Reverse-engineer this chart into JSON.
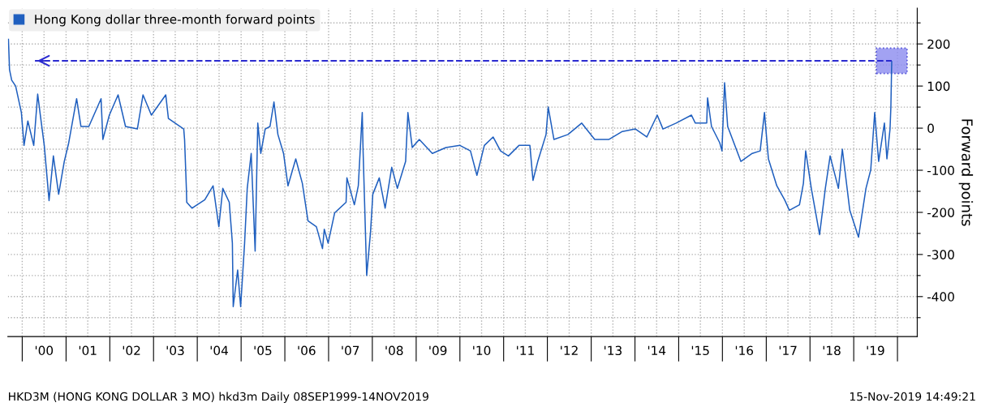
{
  "chart_data": {
    "type": "line",
    "ylabel": "Forward points",
    "x": [
      "1999-09-08",
      "1999-09-17",
      "1999-10-05",
      "1999-11-07",
      "1999-12-25",
      "2000-01-16",
      "2000-02-17",
      "2000-04-06",
      "2000-05-09",
      "2000-05-31",
      "2000-07-03",
      "2000-08-12",
      "2000-09-17",
      "2000-10-31",
      "2000-12-17",
      "2001-01-23",
      "2001-03-30",
      "2001-05-05",
      "2001-07-10",
      "2001-10-20",
      "2001-11-04",
      "2001-12-28",
      "2002-03-11",
      "2002-05-12",
      "2002-08-19",
      "2002-10-05",
      "2002-12-14",
      "2003-04-13",
      "2003-05-05",
      "2003-09-10",
      "2003-09-17",
      "2003-10-02",
      "2003-10-05",
      "2003-11-18",
      "2004-03-04",
      "2004-05-12",
      "2004-06-29",
      "2004-08-01",
      "2004-09-24",
      "2004-10-20",
      "2004-10-27",
      "2004-12-03",
      "2004-12-28",
      "2005-01-30",
      "2005-02-21",
      "2005-03-26",
      "2005-04-28",
      "2005-05-20",
      "2005-06-14",
      "2005-07-21",
      "2005-08-30",
      "2005-10-02",
      "2005-11-04",
      "2005-12-21",
      "2006-01-27",
      "2006-04-02",
      "2006-05-27",
      "2006-07-13",
      "2006-09-21",
      "2006-11-11",
      "2006-11-26",
      "2006-12-28",
      "2007-02-21",
      "2007-05-27",
      "2007-06-03",
      "2007-08-04",
      "2007-09-06",
      "2007-10-09",
      "2007-10-16",
      "2007-11-15",
      "2007-12-17",
      "2008-01-05",
      "2008-02-28",
      "2008-04-17",
      "2008-06-11",
      "2008-07-28",
      "2008-10-05",
      "2008-10-24",
      "2008-11-29",
      "2009-01-27",
      "2009-05-16",
      "2009-09-06",
      "2010-01-01",
      "2010-03-30",
      "2010-05-23",
      "2010-07-24",
      "2010-10-05",
      "2010-12-06",
      "2011-02-10",
      "2011-05-09",
      "2011-08-08",
      "2011-09-03",
      "2011-10-13",
      "2011-12-21",
      "2012-01-08",
      "2012-02-25",
      "2012-06-21",
      "2012-10-13",
      "2013-01-30",
      "2013-05-27",
      "2013-09-17",
      "2014-01-05",
      "2014-04-10",
      "2014-07-06",
      "2014-08-23",
      "2014-12-10",
      "2015-04-17",
      "2015-05-20",
      "2015-08-23",
      "2015-08-30",
      "2015-10-02",
      "2015-12-10",
      "2015-12-28",
      "2016-01-19",
      "2016-02-14",
      "2016-06-03",
      "2016-09-06",
      "2016-11-11",
      "2016-12-17",
      "2017-01-19",
      "2017-03-30",
      "2017-06-03",
      "2017-07-13",
      "2017-10-05",
      "2017-11-07",
      "2017-11-26",
      "2018-01-12",
      "2018-03-22",
      "2018-05-09",
      "2018-06-18",
      "2018-08-26",
      "2018-09-28",
      "2018-11-29",
      "2019-02-10",
      "2019-04-13",
      "2019-05-23",
      "2019-06-25",
      "2019-07-28",
      "2019-09-14",
      "2019-10-05",
      "2019-10-31",
      "2019-11-07",
      "2019-11-14"
    ],
    "series": [
      {
        "name": "Hong Kong dollar three-month forward points",
        "color": "#1f5fbf",
        "values": [
          211,
          139,
          114,
          100,
          37,
          -41,
          17,
          -41,
          81,
          31,
          -41,
          -172,
          -66,
          -157,
          -79,
          -35,
          70,
          4,
          4,
          70,
          -27,
          31,
          79,
          4,
          -2,
          79,
          31,
          79,
          23,
          -2,
          -27,
          -143,
          -176,
          -190,
          -170,
          -137,
          -234,
          -143,
          -176,
          -273,
          -424,
          -337,
          -424,
          -273,
          -143,
          -60,
          -292,
          12,
          -60,
          -2,
          4,
          62,
          -15,
          -60,
          -137,
          -73,
          -131,
          -220,
          -234,
          -286,
          -240,
          -273,
          -201,
          -176,
          -118,
          -182,
          -137,
          37,
          -54,
          -350,
          -247,
          -157,
          -118,
          -190,
          -93,
          -143,
          -79,
          37,
          -46,
          -27,
          -60,
          -46,
          -41,
          -54,
          -112,
          -41,
          -21,
          -54,
          -66,
          -41,
          -41,
          -124,
          -79,
          -15,
          50,
          -27,
          -15,
          12,
          -27,
          -27,
          -8,
          -2,
          -21,
          31,
          -2,
          12,
          31,
          12,
          12,
          72,
          4,
          -35,
          -54,
          108,
          4,
          -79,
          -60,
          -54,
          37,
          -73,
          -137,
          -170,
          -195,
          -182,
          -131,
          -54,
          -143,
          -253,
          -143,
          -66,
          -143,
          -50,
          -195,
          -259,
          -143,
          -99,
          37,
          -79,
          12,
          -73,
          -2,
          50,
          158
        ]
      }
    ],
    "xlim": [
      "1999-09-03",
      "2020-06-14"
    ],
    "xticks": [
      {
        "value": "2000-01-01",
        "label": null
      },
      {
        "value": "2000-07-01",
        "label": "'00"
      },
      {
        "value": "2001-01-01",
        "label": null
      },
      {
        "value": "2001-07-01",
        "label": "'01"
      },
      {
        "value": "2002-01-01",
        "label": null
      },
      {
        "value": "2002-07-01",
        "label": "'02"
      },
      {
        "value": "2003-01-01",
        "label": null
      },
      {
        "value": "2003-07-01",
        "label": "'03"
      },
      {
        "value": "2004-01-01",
        "label": null
      },
      {
        "value": "2004-07-01",
        "label": "'04"
      },
      {
        "value": "2005-01-01",
        "label": null
      },
      {
        "value": "2005-07-01",
        "label": "'05"
      },
      {
        "value": "2006-01-01",
        "label": null
      },
      {
        "value": "2006-07-01",
        "label": "'06"
      },
      {
        "value": "2007-01-01",
        "label": null
      },
      {
        "value": "2007-07-01",
        "label": "'07"
      },
      {
        "value": "2008-01-01",
        "label": null
      },
      {
        "value": "2008-07-01",
        "label": "'08"
      },
      {
        "value": "2009-01-01",
        "label": null
      },
      {
        "value": "2009-07-01",
        "label": "'09"
      },
      {
        "value": "2010-01-01",
        "label": null
      },
      {
        "value": "2010-07-01",
        "label": "'10"
      },
      {
        "value": "2011-01-01",
        "label": null
      },
      {
        "value": "2011-07-01",
        "label": "'11"
      },
      {
        "value": "2012-01-01",
        "label": null
      },
      {
        "value": "2012-07-01",
        "label": "'12"
      },
      {
        "value": "2013-01-01",
        "label": null
      },
      {
        "value": "2013-07-01",
        "label": "'13"
      },
      {
        "value": "2014-01-01",
        "label": null
      },
      {
        "value": "2014-07-01",
        "label": "'14"
      },
      {
        "value": "2015-01-01",
        "label": null
      },
      {
        "value": "2015-07-01",
        "label": "'15"
      },
      {
        "value": "2016-01-01",
        "label": null
      },
      {
        "value": "2016-07-01",
        "label": "'16"
      },
      {
        "value": "2017-01-01",
        "label": null
      },
      {
        "value": "2017-07-01",
        "label": "'17"
      },
      {
        "value": "2018-01-01",
        "label": null
      },
      {
        "value": "2018-07-01",
        "label": "'18"
      },
      {
        "value": "2019-01-01",
        "label": null
      },
      {
        "value": "2019-07-01",
        "label": "'19"
      },
      {
        "value": "2020-01-01",
        "label": null
      }
    ],
    "ylim": [
      -495,
      285
    ],
    "yticks": [
      {
        "value": -450,
        "label": null
      },
      -400,
      {
        "value": -350,
        "label": null
      },
      -300,
      {
        "value": -250,
        "label": null
      },
      -200,
      {
        "value": -150,
        "label": null
      },
      -100,
      {
        "value": -50,
        "label": null
      },
      0,
      {
        "value": 50,
        "label": null
      },
      100,
      {
        "value": 150,
        "label": null
      },
      200,
      {
        "value": 250,
        "label": null
      }
    ],
    "ref_lines": [
      {
        "axis": "y",
        "value": 160,
        "color": "#2b2bd0",
        "line_style": "dashed"
      }
    ],
    "grid": true,
    "legend": "top left",
    "marker": "none",
    "line_style": "solid",
    "annotations": [
      "HKD3M (HONG KONG DOLLAR 3 MO) hkd3m Daily 08SEP1999-14NOV2019",
      "15-Nov-2019 14:49:21"
    ]
  }
}
